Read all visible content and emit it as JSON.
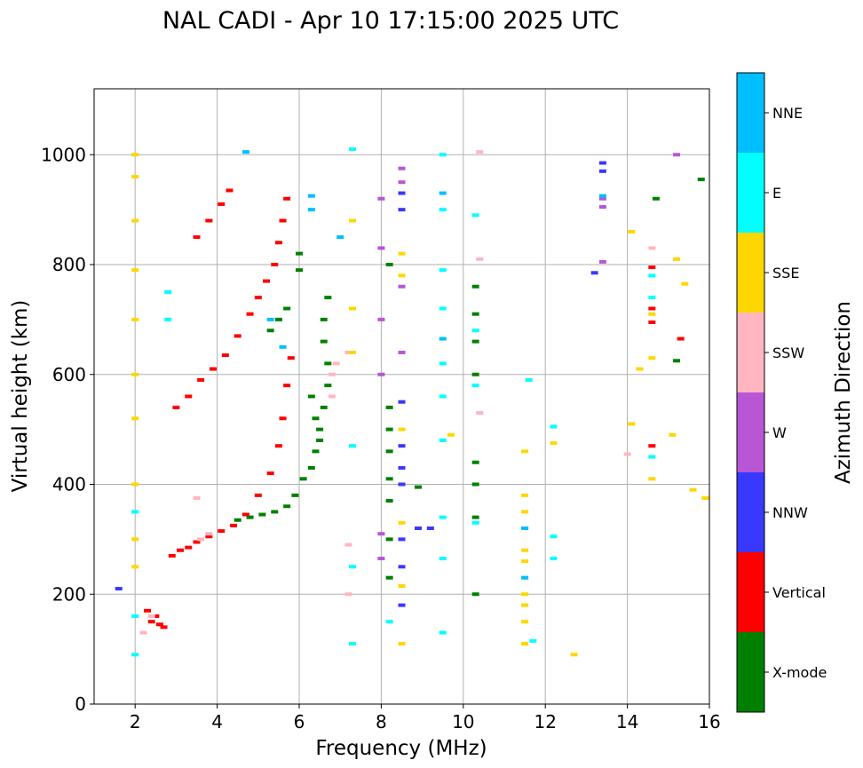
{
  "chart_data": {
    "type": "scatter",
    "title": "NAL CADI - Apr 10 17:15:00 2025 UTC",
    "xlabel": "Frequency (MHz)",
    "ylabel": "Virtual height (km)",
    "xlim": [
      1,
      16
    ],
    "ylim": [
      0,
      1120
    ],
    "xticks": [
      2,
      4,
      6,
      8,
      10,
      12,
      14,
      16
    ],
    "yticks": [
      0,
      200,
      400,
      600,
      800,
      1000
    ],
    "grid": true,
    "colorbar": {
      "label": "Azimuth Direction",
      "categories": [
        {
          "name": "X-mode",
          "color": "#008000"
        },
        {
          "name": "Vertical",
          "color": "#ff0000"
        },
        {
          "name": "NNW",
          "color": "#3838ff"
        },
        {
          "name": "W",
          "color": "#b856d6"
        },
        {
          "name": "SSW",
          "color": "#ffb6c1"
        },
        {
          "name": "SSE",
          "color": "#ffd700"
        },
        {
          "name": "E",
          "color": "#00ffff"
        },
        {
          "name": "NNE",
          "color": "#00bfff"
        }
      ]
    },
    "series": [
      {
        "name": "Vertical",
        "points": [
          [
            2.9,
            270
          ],
          [
            3.1,
            280
          ],
          [
            3.3,
            285
          ],
          [
            3.5,
            295
          ],
          [
            3.8,
            305
          ],
          [
            4.1,
            315
          ],
          [
            4.4,
            325
          ],
          [
            4.7,
            345
          ],
          [
            5.0,
            380
          ],
          [
            5.3,
            420
          ],
          [
            5.5,
            470
          ],
          [
            5.6,
            520
          ],
          [
            5.7,
            580
          ],
          [
            5.8,
            630
          ],
          [
            3.0,
            540
          ],
          [
            3.3,
            560
          ],
          [
            3.6,
            590
          ],
          [
            3.9,
            610
          ],
          [
            4.2,
            635
          ],
          [
            4.5,
            670
          ],
          [
            4.8,
            710
          ],
          [
            5.0,
            740
          ],
          [
            5.2,
            770
          ],
          [
            5.4,
            800
          ],
          [
            5.5,
            840
          ],
          [
            5.6,
            880
          ],
          [
            5.7,
            920
          ],
          [
            3.5,
            850
          ],
          [
            3.8,
            880
          ],
          [
            4.1,
            910
          ],
          [
            4.3,
            935
          ],
          [
            2.3,
            170
          ],
          [
            2.4,
            150
          ],
          [
            2.5,
            160
          ],
          [
            2.6,
            145
          ],
          [
            2.7,
            140
          ],
          [
            14.6,
            470
          ],
          [
            14.6,
            720
          ],
          [
            14.6,
            695
          ],
          [
            15.3,
            665
          ],
          [
            14.6,
            795
          ]
        ]
      },
      {
        "name": "X-mode",
        "points": [
          [
            4.5,
            335
          ],
          [
            4.8,
            340
          ],
          [
            5.1,
            345
          ],
          [
            5.4,
            350
          ],
          [
            5.7,
            360
          ],
          [
            5.9,
            380
          ],
          [
            6.1,
            410
          ],
          [
            6.3,
            430
          ],
          [
            6.4,
            460
          ],
          [
            6.5,
            500
          ],
          [
            6.6,
            540
          ],
          [
            6.7,
            580
          ],
          [
            6.7,
            620
          ],
          [
            6.6,
            660
          ],
          [
            6.6,
            700
          ],
          [
            6.7,
            740
          ],
          [
            6.0,
            790
          ],
          [
            6.0,
            820
          ],
          [
            5.3,
            680
          ],
          [
            5.5,
            700
          ],
          [
            5.7,
            720
          ],
          [
            6.5,
            480
          ],
          [
            6.4,
            520
          ],
          [
            6.3,
            560
          ],
          [
            8.2,
            540
          ],
          [
            8.2,
            500
          ],
          [
            8.2,
            460
          ],
          [
            8.2,
            410
          ],
          [
            8.2,
            370
          ],
          [
            8.2,
            300
          ],
          [
            8.2,
            230
          ],
          [
            8.2,
            800
          ],
          [
            8.9,
            395
          ],
          [
            10.3,
            200
          ],
          [
            10.3,
            340
          ],
          [
            10.3,
            400
          ],
          [
            10.3,
            440
          ],
          [
            10.3,
            600
          ],
          [
            10.3,
            660
          ],
          [
            10.3,
            710
          ],
          [
            10.3,
            760
          ],
          [
            14.7,
            920
          ],
          [
            15.2,
            625
          ],
          [
            15.8,
            955
          ]
        ]
      },
      {
        "name": "NNW",
        "points": [
          [
            8.5,
            180
          ],
          [
            8.5,
            250
          ],
          [
            8.5,
            300
          ],
          [
            8.5,
            400
          ],
          [
            8.5,
            430
          ],
          [
            8.5,
            470
          ],
          [
            8.5,
            550
          ],
          [
            8.5,
            900
          ],
          [
            8.5,
            930
          ],
          [
            8.9,
            320
          ],
          [
            9.2,
            320
          ],
          [
            13.4,
            970
          ],
          [
            13.4,
            985
          ],
          [
            13.2,
            785
          ],
          [
            1.6,
            210
          ]
        ]
      },
      {
        "name": "W",
        "points": [
          [
            8.5,
            640
          ],
          [
            8.5,
            760
          ],
          [
            8.5,
            950
          ],
          [
            8.5,
            975
          ],
          [
            8.0,
            830
          ],
          [
            8.0,
            920
          ],
          [
            8.0,
            700
          ],
          [
            8.0,
            600
          ],
          [
            8.0,
            310
          ],
          [
            8.0,
            265
          ],
          [
            13.4,
            905
          ],
          [
            13.4,
            920
          ],
          [
            13.4,
            805
          ],
          [
            15.2,
            1000
          ]
        ]
      },
      {
        "name": "SSW",
        "points": [
          [
            2.2,
            130
          ],
          [
            2.4,
            160
          ],
          [
            3.5,
            375
          ],
          [
            3.6,
            300
          ],
          [
            3.8,
            310
          ],
          [
            6.8,
            560
          ],
          [
            6.8,
            600
          ],
          [
            6.9,
            620
          ],
          [
            7.2,
            640
          ],
          [
            7.2,
            200
          ],
          [
            7.2,
            290
          ],
          [
            10.4,
            810
          ],
          [
            10.4,
            530
          ],
          [
            10.4,
            1005
          ],
          [
            14.6,
            830
          ],
          [
            14.0,
            455
          ]
        ]
      },
      {
        "name": "SSE",
        "points": [
          [
            2.0,
            1000
          ],
          [
            2.0,
            960
          ],
          [
            2.0,
            880
          ],
          [
            2.0,
            790
          ],
          [
            2.0,
            700
          ],
          [
            2.0,
            600
          ],
          [
            2.0,
            520
          ],
          [
            2.0,
            400
          ],
          [
            2.0,
            300
          ],
          [
            2.0,
            250
          ],
          [
            7.3,
            880
          ],
          [
            7.3,
            720
          ],
          [
            7.3,
            640
          ],
          [
            8.5,
            110
          ],
          [
            8.5,
            215
          ],
          [
            8.5,
            330
          ],
          [
            8.5,
            500
          ],
          [
            8.5,
            780
          ],
          [
            8.5,
            820
          ],
          [
            11.5,
            110
          ],
          [
            11.5,
            150
          ],
          [
            11.5,
            180
          ],
          [
            11.5,
            200
          ],
          [
            11.5,
            230
          ],
          [
            11.5,
            260
          ],
          [
            11.5,
            280
          ],
          [
            11.5,
            320
          ],
          [
            11.5,
            350
          ],
          [
            11.5,
            380
          ],
          [
            11.5,
            460
          ],
          [
            12.2,
            475
          ],
          [
            12.7,
            90
          ],
          [
            14.1,
            510
          ],
          [
            14.1,
            860
          ],
          [
            14.3,
            610
          ],
          [
            14.6,
            410
          ],
          [
            14.6,
            630
          ],
          [
            14.6,
            710
          ],
          [
            15.1,
            490
          ],
          [
            15.2,
            810
          ],
          [
            15.4,
            765
          ],
          [
            15.6,
            390
          ],
          [
            15.9,
            375
          ],
          [
            9.7,
            490
          ]
        ]
      },
      {
        "name": "E",
        "points": [
          [
            2.0,
            90
          ],
          [
            2.0,
            160
          ],
          [
            2.0,
            350
          ],
          [
            2.8,
            700
          ],
          [
            2.8,
            750
          ],
          [
            7.3,
            110
          ],
          [
            7.3,
            250
          ],
          [
            7.3,
            470
          ],
          [
            7.3,
            1010
          ],
          [
            8.2,
            150
          ],
          [
            9.5,
            130
          ],
          [
            9.5,
            265
          ],
          [
            9.5,
            340
          ],
          [
            9.5,
            480
          ],
          [
            9.5,
            560
          ],
          [
            9.5,
            620
          ],
          [
            9.5,
            720
          ],
          [
            9.5,
            790
          ],
          [
            9.5,
            900
          ],
          [
            9.5,
            1000
          ],
          [
            10.3,
            330
          ],
          [
            10.3,
            580
          ],
          [
            10.3,
            680
          ],
          [
            10.3,
            890
          ],
          [
            11.7,
            115
          ],
          [
            11.6,
            590
          ],
          [
            12.2,
            265
          ],
          [
            12.2,
            305
          ],
          [
            12.2,
            505
          ],
          [
            14.6,
            450
          ],
          [
            14.6,
            740
          ],
          [
            14.6,
            780
          ]
        ]
      },
      {
        "name": "NNE",
        "points": [
          [
            4.7,
            1005
          ],
          [
            5.3,
            700
          ],
          [
            5.6,
            650
          ],
          [
            6.3,
            925
          ],
          [
            6.3,
            900
          ],
          [
            7.0,
            850
          ],
          [
            9.5,
            665
          ],
          [
            9.5,
            930
          ],
          [
            11.5,
            230
          ],
          [
            11.5,
            320
          ],
          [
            13.4,
            925
          ]
        ]
      }
    ]
  }
}
